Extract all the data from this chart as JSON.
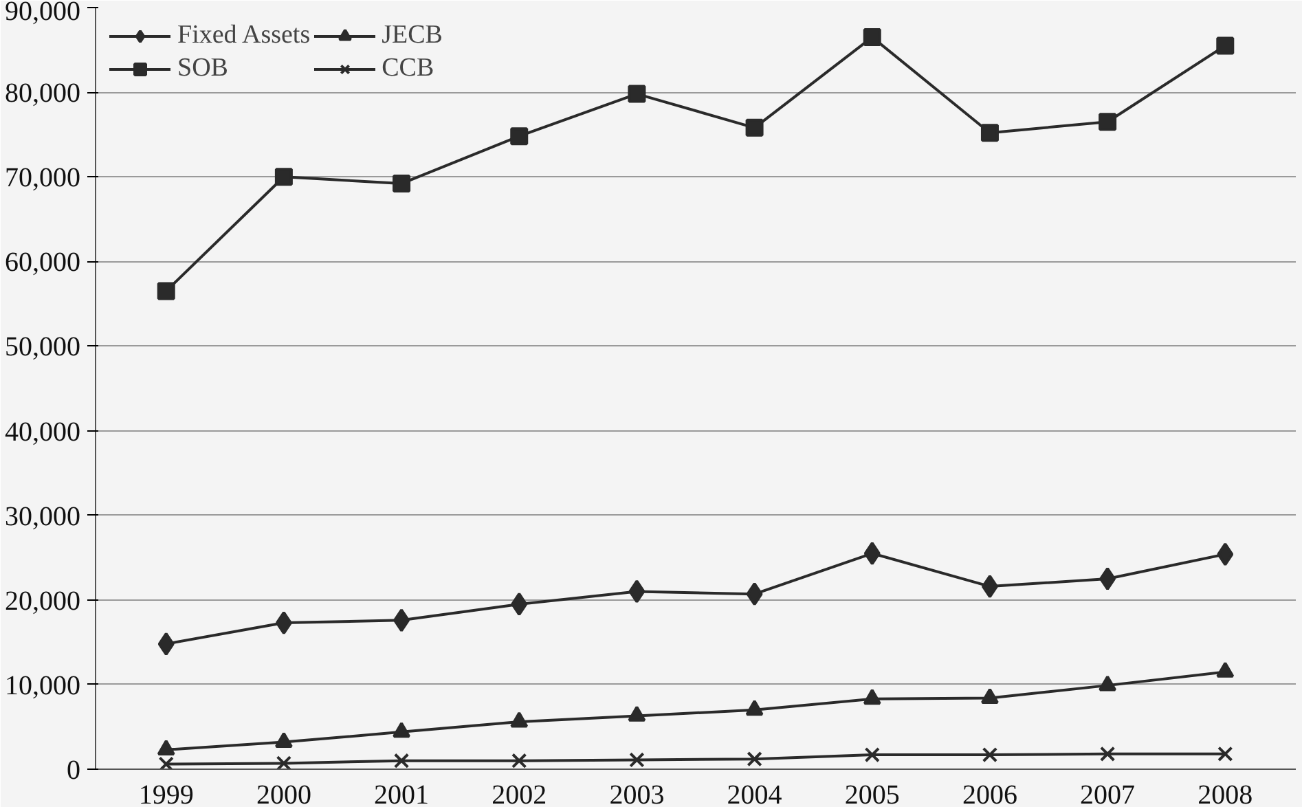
{
  "chart_data": {
    "type": "line",
    "categories": [
      "1999",
      "2000",
      "2001",
      "2002",
      "2003",
      "2004",
      "2005",
      "2006",
      "2007",
      "2008"
    ],
    "series": [
      {
        "name": "Fixed Assets",
        "color": "#2a2a2a",
        "marker": "diamond",
        "values": [
          14800,
          17300,
          17600,
          19500,
          21000,
          20700,
          25500,
          21600,
          22500,
          25400
        ]
      },
      {
        "name": "SOB",
        "color": "#2a2a2a",
        "marker": "square",
        "values": [
          56500,
          70000,
          69200,
          74800,
          79800,
          75800,
          86500,
          75200,
          76500,
          85500
        ]
      },
      {
        "name": "JECB",
        "color": "#2a2a2a",
        "marker": "triangle",
        "values": [
          2300,
          3200,
          4400,
          5600,
          6300,
          7000,
          8300,
          8400,
          9900,
          11500
        ]
      },
      {
        "name": "CCB",
        "color": "#2a2a2a",
        "marker": "cross",
        "values": [
          600,
          700,
          1000,
          1000,
          1100,
          1200,
          1700,
          1700,
          1800,
          1800
        ]
      }
    ],
    "ylim": [
      0,
      90000
    ],
    "yticks": [
      {
        "value": 0,
        "label": "0"
      },
      {
        "value": 10000,
        "label": "10,000"
      },
      {
        "value": 20000,
        "label": "20,000"
      },
      {
        "value": 30000,
        "label": "30,000"
      },
      {
        "value": 40000,
        "label": "40,000"
      },
      {
        "value": 50000,
        "label": "50,000"
      },
      {
        "value": 60000,
        "label": "60,000"
      },
      {
        "value": 70000,
        "label": "70,000"
      },
      {
        "value": 80000,
        "label": "80,000"
      },
      {
        "value": 90000,
        "label": "90,000"
      }
    ],
    "grid": "y",
    "legend": "top left",
    "line_style": "solid"
  }
}
